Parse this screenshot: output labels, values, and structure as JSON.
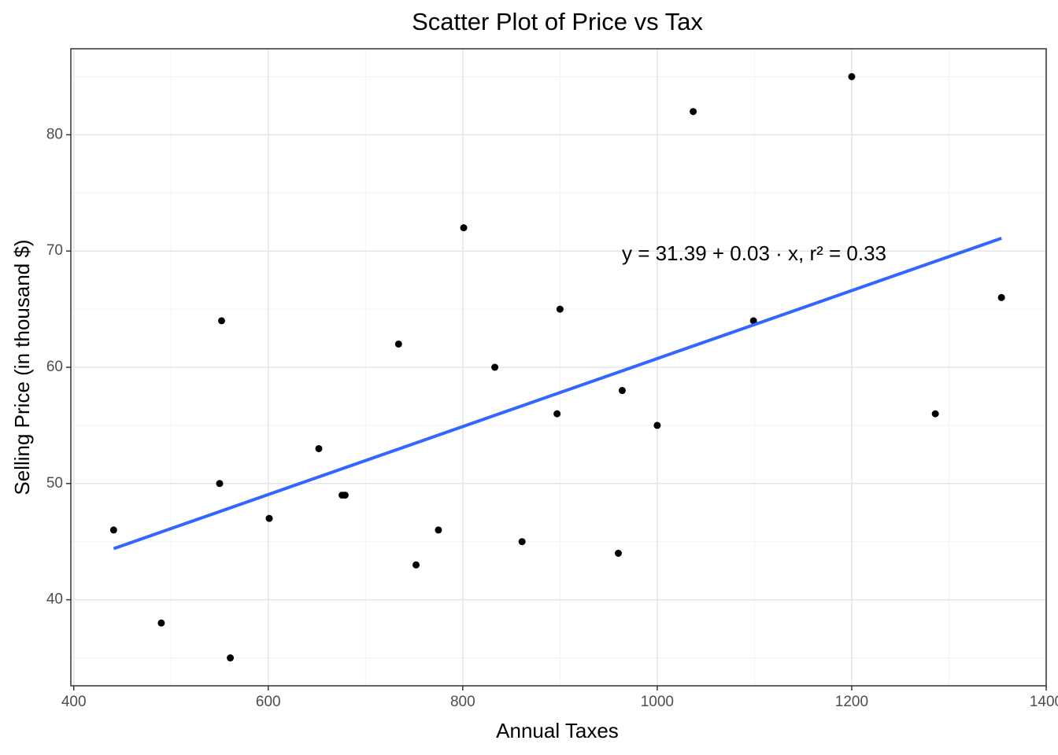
{
  "chart_data": {
    "type": "scatter",
    "title": "Scatter Plot of Price vs Tax",
    "x_label": "Annual Taxes",
    "y_label": "Selling Price (in thousand $)",
    "annotation": "y = 31.39 + 0.03 · x,  r² = 0.33",
    "x": [
      441,
      490,
      550,
      552,
      561,
      601,
      652,
      676,
      679,
      734,
      752,
      775,
      801,
      833,
      861,
      897,
      900,
      960,
      964,
      1000,
      1037,
      1099,
      1200,
      1286,
      1354
    ],
    "y": [
      46,
      38,
      50,
      64,
      35,
      47,
      53,
      49,
      49,
      62,
      43,
      46,
      72,
      60,
      45,
      56,
      65,
      44,
      58,
      55,
      82,
      64,
      85,
      56,
      66
    ],
    "color": "#000000",
    "fit": {
      "x": [
        441,
        1354
      ],
      "y": [
        44.4,
        71.1
      ],
      "color": "#3366ff"
    },
    "xlim": [
      397,
      1400
    ],
    "ylim": [
      32.6,
      87.4
    ],
    "xticks": [
      400,
      600,
      800,
      1000,
      1200,
      1400
    ],
    "yticks": [
      40,
      50,
      60,
      70,
      80
    ],
    "xminor": [
      500,
      700,
      900,
      1100,
      1300
    ],
    "yminor": [
      35,
      45,
      55,
      65,
      75,
      85
    ],
    "grid": true
  }
}
